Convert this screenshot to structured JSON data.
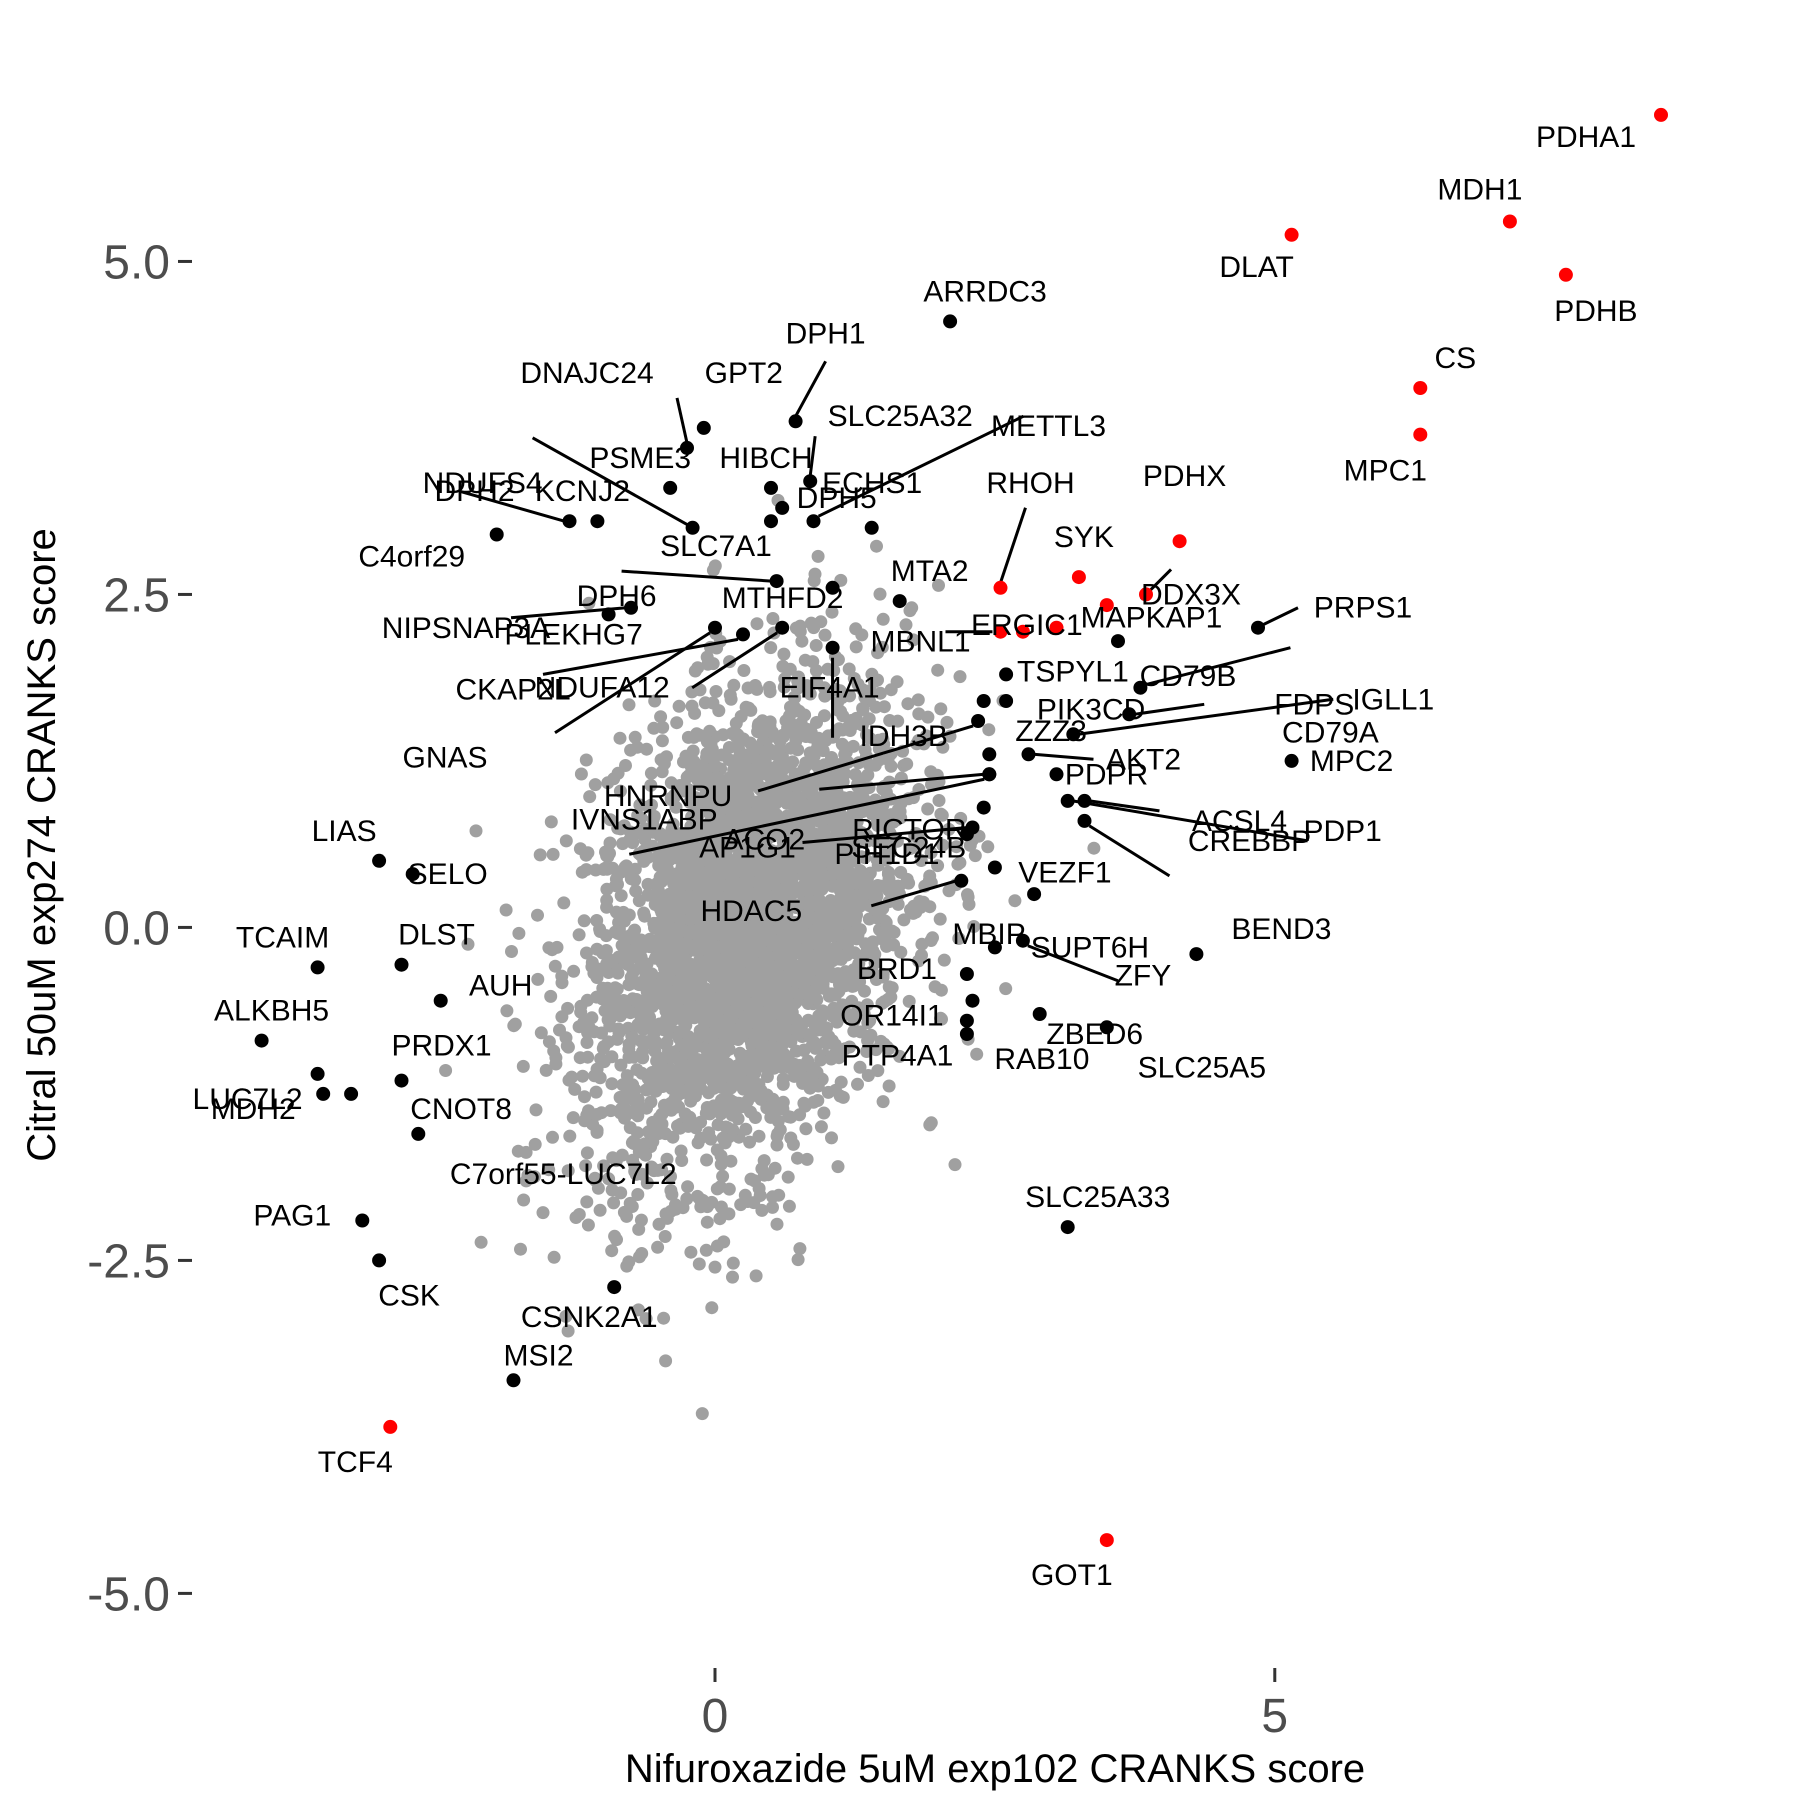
{
  "chart_data": {
    "type": "scatter",
    "xlabel": "Nifuroxazide 5uM exp102 CRANKS score",
    "ylabel": "Citral 50uM exp274 CRANKS score",
    "xlim": [
      -4.6,
      9.2
    ],
    "ylim": [
      -5.5,
      6.55
    ],
    "x_ticks": [
      {
        "value": 0,
        "label": "0"
      },
      {
        "value": 5,
        "label": "5"
      }
    ],
    "y_ticks": [
      {
        "value": 5,
        "label": "5.0"
      },
      {
        "value": 2.5,
        "label": "2.5"
      },
      {
        "value": 0,
        "label": "0.0"
      },
      {
        "value": -2.5,
        "label": "-2.5"
      },
      {
        "value": -5,
        "label": "-5.0"
      }
    ],
    "grid": false,
    "legend": "none",
    "colors": {
      "background_points": "#a0a0a0",
      "highlight": "#ff0000",
      "labeled": "#000000"
    },
    "background_cloud": {
      "n_points": 3400,
      "x_mean": 0.3,
      "y_mean": 0.0,
      "x_sd": 0.72,
      "y_sd": 0.92,
      "correlation": 0.35
    },
    "labeled_points": [
      {
        "gene": "PDHA1",
        "x": 8.45,
        "y": 6.1,
        "highlight": true
      },
      {
        "gene": "MDH1",
        "x": 7.1,
        "y": 5.3,
        "highlight": true
      },
      {
        "gene": "DLAT",
        "x": 5.15,
        "y": 5.2,
        "highlight": true
      },
      {
        "gene": "PDHB",
        "x": 7.6,
        "y": 4.9,
        "highlight": true
      },
      {
        "gene": "CS",
        "x": 6.3,
        "y": 4.05,
        "highlight": true
      },
      {
        "gene": "MPC1",
        "x": 6.3,
        "y": 3.7,
        "highlight": true
      },
      {
        "gene": "ARRDC3",
        "x": 2.1,
        "y": 4.55,
        "highlight": false
      },
      {
        "gene": "DPH1",
        "x": 0.72,
        "y": 3.8,
        "highlight": false
      },
      {
        "gene": "DNAJC24",
        "x": -0.25,
        "y": 3.6,
        "highlight": false
      },
      {
        "gene": "GPT2",
        "x": -0.1,
        "y": 3.75,
        "highlight": false
      },
      {
        "gene": "SLC25A32",
        "x": 0.85,
        "y": 3.35,
        "highlight": false
      },
      {
        "gene": "METTL3",
        "x": 0.88,
        "y": 3.05,
        "highlight": false
      },
      {
        "gene": "NDUFS4",
        "x": -0.2,
        "y": 3.0,
        "highlight": false
      },
      {
        "gene": "PSME3",
        "x": -0.4,
        "y": 3.3,
        "highlight": false
      },
      {
        "gene": "HIBCH",
        "x": 0.5,
        "y": 3.3,
        "highlight": false
      },
      {
        "gene": "DPH5",
        "x": 1.4,
        "y": 3.0,
        "highlight": false
      },
      {
        "gene": "ECHS1",
        "x": 0.6,
        "y": 3.15,
        "highlight": false
      },
      {
        "gene": "SLC7A1",
        "x": 0.5,
        "y": 3.05,
        "highlight": false
      },
      {
        "gene": "DPH2",
        "x": -1.3,
        "y": 3.05,
        "highlight": false
      },
      {
        "gene": "KCNJ2",
        "x": -1.05,
        "y": 3.05,
        "highlight": false
      },
      {
        "gene": "C4orf29",
        "x": -1.95,
        "y": 2.95,
        "highlight": false
      },
      {
        "gene": "DPH6",
        "x": 0.55,
        "y": 2.6,
        "highlight": false
      },
      {
        "gene": "MTHFD2",
        "x": 1.05,
        "y": 2.55,
        "highlight": false
      },
      {
        "gene": "MTA2",
        "x": 1.65,
        "y": 2.45,
        "highlight": false
      },
      {
        "gene": "RHOH",
        "x": 2.55,
        "y": 2.55,
        "highlight": true
      },
      {
        "gene": "PDHX",
        "x": 4.15,
        "y": 2.9,
        "highlight": true
      },
      {
        "gene": "SYK",
        "x": 3.25,
        "y": 2.63,
        "highlight": true
      },
      {
        "gene": "DDX3X",
        "x": 3.85,
        "y": 2.5,
        "highlight": true
      },
      {
        "gene": "ERGIC1",
        "x": 3.5,
        "y": 2.42,
        "highlight": true
      },
      {
        "gene": "MAPKAP1",
        "x": 3.05,
        "y": 2.25,
        "highlight": true
      },
      {
        "gene": "PRPS1",
        "x": 4.85,
        "y": 2.25,
        "highlight": false
      },
      {
        "gene": "NIPSNAP3A",
        "x": -0.75,
        "y": 2.4,
        "highlight": false
      },
      {
        "gene": "PLEKHG7",
        "x": -0.95,
        "y": 2.35,
        "highlight": false
      },
      {
        "gene": "MBNL1",
        "x": 2.55,
        "y": 2.22,
        "highlight": true
      },
      {
        "gene": "TSPYL1",
        "x": 2.75,
        "y": 2.22,
        "highlight": true
      },
      {
        "gene": "CD79B",
        "x": 3.6,
        "y": 2.15,
        "highlight": false
      },
      {
        "gene": "CD79A",
        "x": 3.8,
        "y": 1.8,
        "highlight": false
      },
      {
        "gene": "CKAP2L",
        "x": 0.25,
        "y": 2.2,
        "highlight": false
      },
      {
        "gene": "NDUFA12",
        "x": 0.6,
        "y": 2.25,
        "highlight": false
      },
      {
        "gene": "EIF4A1",
        "x": 1.05,
        "y": 2.1,
        "highlight": false
      },
      {
        "gene": "PIK3CD",
        "x": 2.6,
        "y": 1.9,
        "highlight": false
      },
      {
        "gene": "IDH3B",
        "x": 2.4,
        "y": 1.7,
        "highlight": false
      },
      {
        "gene": "FDPS",
        "x": 3.7,
        "y": 1.6,
        "highlight": false
      },
      {
        "gene": "IGLL1",
        "x": 3.2,
        "y": 1.45,
        "highlight": false
      },
      {
        "gene": "GNAS",
        "x": 0.0,
        "y": 2.25,
        "highlight": false
      },
      {
        "gene": "ZZZ3",
        "x": 2.6,
        "y": 1.7,
        "highlight": false
      },
      {
        "gene": "HNRNPU",
        "x": 2.35,
        "y": 1.55,
        "highlight": false
      },
      {
        "gene": "RICTOR",
        "x": 2.45,
        "y": 1.3,
        "highlight": false
      },
      {
        "gene": "AKT2",
        "x": 2.8,
        "y": 1.3,
        "highlight": false
      },
      {
        "gene": "MPC2",
        "x": 5.15,
        "y": 1.25,
        "highlight": false
      },
      {
        "gene": "IVNS1ABP",
        "x": 2.45,
        "y": 1.15,
        "highlight": false
      },
      {
        "gene": "ACO2",
        "x": 2.45,
        "y": 1.15,
        "highlight": false
      },
      {
        "gene": "SEC24B",
        "x": 2.4,
        "y": 0.9,
        "highlight": false
      },
      {
        "gene": "PDPR",
        "x": 3.05,
        "y": 1.15,
        "highlight": false
      },
      {
        "gene": "ACSL4",
        "x": 3.3,
        "y": 0.95,
        "highlight": false
      },
      {
        "gene": "PDP1",
        "x": 3.15,
        "y": 0.95,
        "highlight": false
      },
      {
        "gene": "AP1G1",
        "x": 2.3,
        "y": 0.75,
        "highlight": false
      },
      {
        "gene": "PIH1D1",
        "x": 2.25,
        "y": 0.7,
        "highlight": false
      },
      {
        "gene": "CREBBP",
        "x": 3.3,
        "y": 0.8,
        "highlight": false
      },
      {
        "gene": "VEZF1",
        "x": 2.5,
        "y": 0.45,
        "highlight": false
      },
      {
        "gene": "HDAC5",
        "x": 2.2,
        "y": 0.35,
        "highlight": false
      },
      {
        "gene": "MBIP",
        "x": 2.85,
        "y": 0.25,
        "highlight": false
      },
      {
        "gene": "SUPT6H",
        "x": 2.5,
        "y": -0.15,
        "highlight": false
      },
      {
        "gene": "BEND3",
        "x": 4.3,
        "y": -0.2,
        "highlight": false
      },
      {
        "gene": "ZFY",
        "x": 2.75,
        "y": -0.1,
        "highlight": false
      },
      {
        "gene": "BRD1",
        "x": 2.25,
        "y": -0.35,
        "highlight": false
      },
      {
        "gene": "ZBED6",
        "x": 2.9,
        "y": -0.65,
        "highlight": false
      },
      {
        "gene": "OR14I1",
        "x": 2.25,
        "y": -0.7,
        "highlight": false
      },
      {
        "gene": "RAB10",
        "x": 2.25,
        "y": -0.8,
        "highlight": false
      },
      {
        "gene": "SLC25A5",
        "x": 3.5,
        "y": -0.75,
        "highlight": false
      },
      {
        "gene": "PTP4A1",
        "x": 2.3,
        "y": -0.55,
        "highlight": false
      },
      {
        "gene": "LIAS",
        "x": -3.0,
        "y": 0.5,
        "highlight": false
      },
      {
        "gene": "SELO",
        "x": -2.7,
        "y": 0.4,
        "highlight": false
      },
      {
        "gene": "TCAIM",
        "x": -3.55,
        "y": -0.3,
        "highlight": false
      },
      {
        "gene": "DLST",
        "x": -2.8,
        "y": -0.28,
        "highlight": false
      },
      {
        "gene": "AUH",
        "x": -2.45,
        "y": -0.55,
        "highlight": false
      },
      {
        "gene": "ALKBH5",
        "x": -4.05,
        "y": -0.85,
        "highlight": false
      },
      {
        "gene": "PRDX1",
        "x": -2.8,
        "y": -1.15,
        "highlight": false
      },
      {
        "gene": "MDH2",
        "x": -3.5,
        "y": -1.25,
        "highlight": false
      },
      {
        "gene": "CNOT8",
        "x": -3.25,
        "y": -1.25,
        "highlight": false
      },
      {
        "gene": "LUC7L2",
        "x": -3.55,
        "y": -1.1,
        "highlight": false
      },
      {
        "gene": "C7orf55-LUC7L2",
        "x": -2.65,
        "y": -1.55,
        "highlight": false
      },
      {
        "gene": "PAG1",
        "x": -3.15,
        "y": -2.2,
        "highlight": false
      },
      {
        "gene": "CSK",
        "x": -3.0,
        "y": -2.5,
        "highlight": false
      },
      {
        "gene": "CSNK2A1",
        "x": -0.9,
        "y": -2.7,
        "highlight": false
      },
      {
        "gene": "SLC25A33",
        "x": 3.15,
        "y": -2.25,
        "highlight": false
      },
      {
        "gene": "MSI2",
        "x": -1.8,
        "y": -3.4,
        "highlight": false
      },
      {
        "gene": "TCF4",
        "x": -2.9,
        "y": -3.75,
        "highlight": true
      },
      {
        "gene": "GOT1",
        "x": 3.5,
        "y": -4.6,
        "highlight": true
      }
    ]
  }
}
